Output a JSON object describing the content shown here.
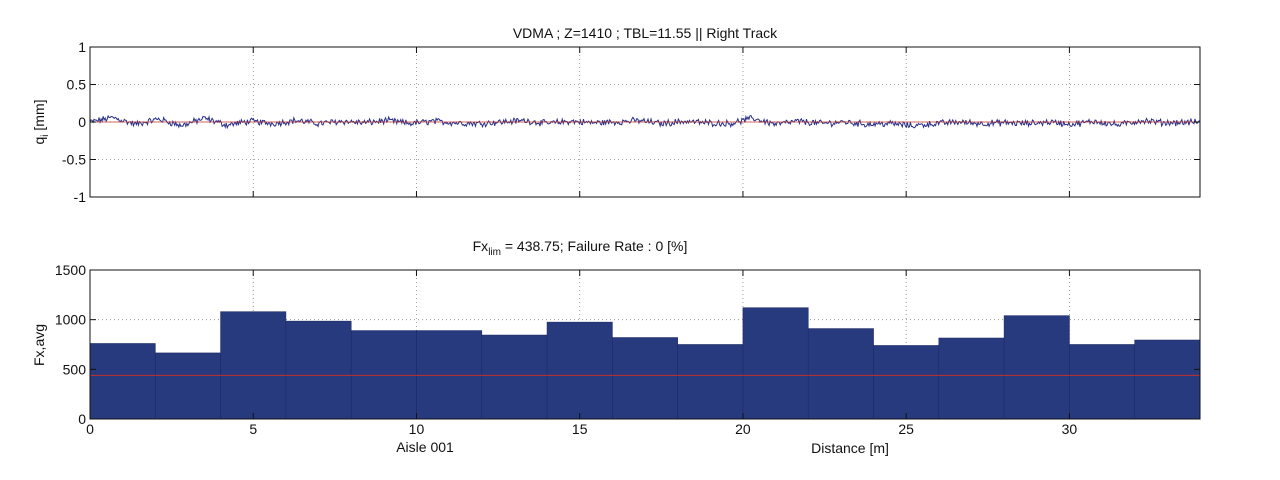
{
  "chart_data": [
    {
      "type": "line",
      "title": "VDMA ; Z=1410 ; TBL=11.55  ||   Right Track",
      "ylabel": "q",
      "ylabel_sub": "i",
      "ylabel_unit": " [mm]",
      "xlim": [
        0,
        34
      ],
      "ylim": [
        -1,
        1
      ],
      "grid": "dotted",
      "x_ticks": [
        0,
        5,
        10,
        15,
        20,
        25,
        30
      ],
      "y_ticks": [
        -1,
        -0.5,
        0,
        0.5,
        1
      ],
      "x_tick_labels": [
        "",
        "",
        "",
        "",
        "",
        "",
        ""
      ],
      "y_tick_labels": [
        "-1",
        "-0.5",
        "0",
        "0.5",
        "1"
      ],
      "series": [
        {
          "color": "#2a2f8a",
          "noise_amplitude": 0.06,
          "x": [
            0,
            0.7,
            1.4,
            2.1,
            2.8,
            3.5,
            4.2,
            4.9,
            5.6,
            6.3,
            7.0,
            7.7,
            8.4,
            9.1,
            9.8,
            10.5,
            11.2,
            11.9,
            12.6,
            13.3,
            14.0,
            14.7,
            15.4,
            16.1,
            16.8,
            17.5,
            18.2,
            18.9,
            19.6,
            20.3,
            21.0,
            21.7,
            22.4,
            23.1,
            23.8,
            24.5,
            25.2,
            25.9,
            26.6,
            27.3,
            28.0,
            28.7,
            29.4,
            30.1,
            30.8,
            31.5,
            32.2,
            32.9,
            34.0
          ],
          "y": [
            0.0,
            0.06,
            -0.03,
            0.04,
            -0.05,
            0.05,
            -0.04,
            0.01,
            -0.02,
            0.02,
            -0.02,
            0.01,
            -0.01,
            0.02,
            -0.02,
            0.01,
            -0.01,
            -0.02,
            0.0,
            0.02,
            -0.02,
            0.01,
            -0.01,
            0.0,
            0.02,
            -0.02,
            0.01,
            -0.01,
            -0.02,
            0.05,
            -0.03,
            0.01,
            -0.02,
            0.0,
            -0.03,
            -0.02,
            -0.05,
            -0.02,
            0.0,
            -0.02,
            -0.01,
            -0.02,
            0.0,
            -0.03,
            0.01,
            -0.04,
            0.02,
            -0.01,
            0.0
          ]
        },
        {
          "color": "#c0302a",
          "x": [
            0,
            34
          ],
          "y": [
            0,
            0
          ]
        }
      ]
    },
    {
      "type": "bar",
      "title_prefix": "Fx",
      "title_sub": "lim",
      "title_suffix": " = 438.75;  Failure Rate : 0 [%]",
      "ylabel": "Fx,avg",
      "xlabel": "Distance [m]",
      "x_annotation": "Aisle 001",
      "xlim": [
        0,
        34
      ],
      "ylim": [
        0,
        1500
      ],
      "grid": "dotted",
      "x_ticks": [
        0,
        5,
        10,
        15,
        20,
        25,
        30
      ],
      "y_ticks": [
        0,
        500,
        1000,
        1500
      ],
      "x_tick_labels": [
        "0",
        "5",
        "10",
        "15",
        "20",
        "25",
        "30"
      ],
      "y_tick_labels": [
        "0",
        "500",
        "1000",
        "1500"
      ],
      "bar_color": "#283a7e",
      "limit_value": 438.75,
      "limit_color": "#c0302a",
      "bins": [
        {
          "x0": 0,
          "x1": 2,
          "value": 760
        },
        {
          "x0": 2,
          "x1": 4,
          "value": 665
        },
        {
          "x0": 4,
          "x1": 6,
          "value": 1080
        },
        {
          "x0": 6,
          "x1": 8,
          "value": 985
        },
        {
          "x0": 8,
          "x1": 10,
          "value": 890
        },
        {
          "x0": 10,
          "x1": 12,
          "value": 890
        },
        {
          "x0": 12,
          "x1": 14,
          "value": 845
        },
        {
          "x0": 14,
          "x1": 16,
          "value": 975
        },
        {
          "x0": 16,
          "x1": 18,
          "value": 820
        },
        {
          "x0": 18,
          "x1": 20,
          "value": 750
        },
        {
          "x0": 20,
          "x1": 22,
          "value": 1120
        },
        {
          "x0": 22,
          "x1": 24,
          "value": 910
        },
        {
          "x0": 24,
          "x1": 26,
          "value": 740
        },
        {
          "x0": 26,
          "x1": 28,
          "value": 815
        },
        {
          "x0": 28,
          "x1": 30,
          "value": 1040
        },
        {
          "x0": 30,
          "x1": 32,
          "value": 750
        },
        {
          "x0": 32,
          "x1": 34,
          "value": 795
        }
      ]
    }
  ]
}
